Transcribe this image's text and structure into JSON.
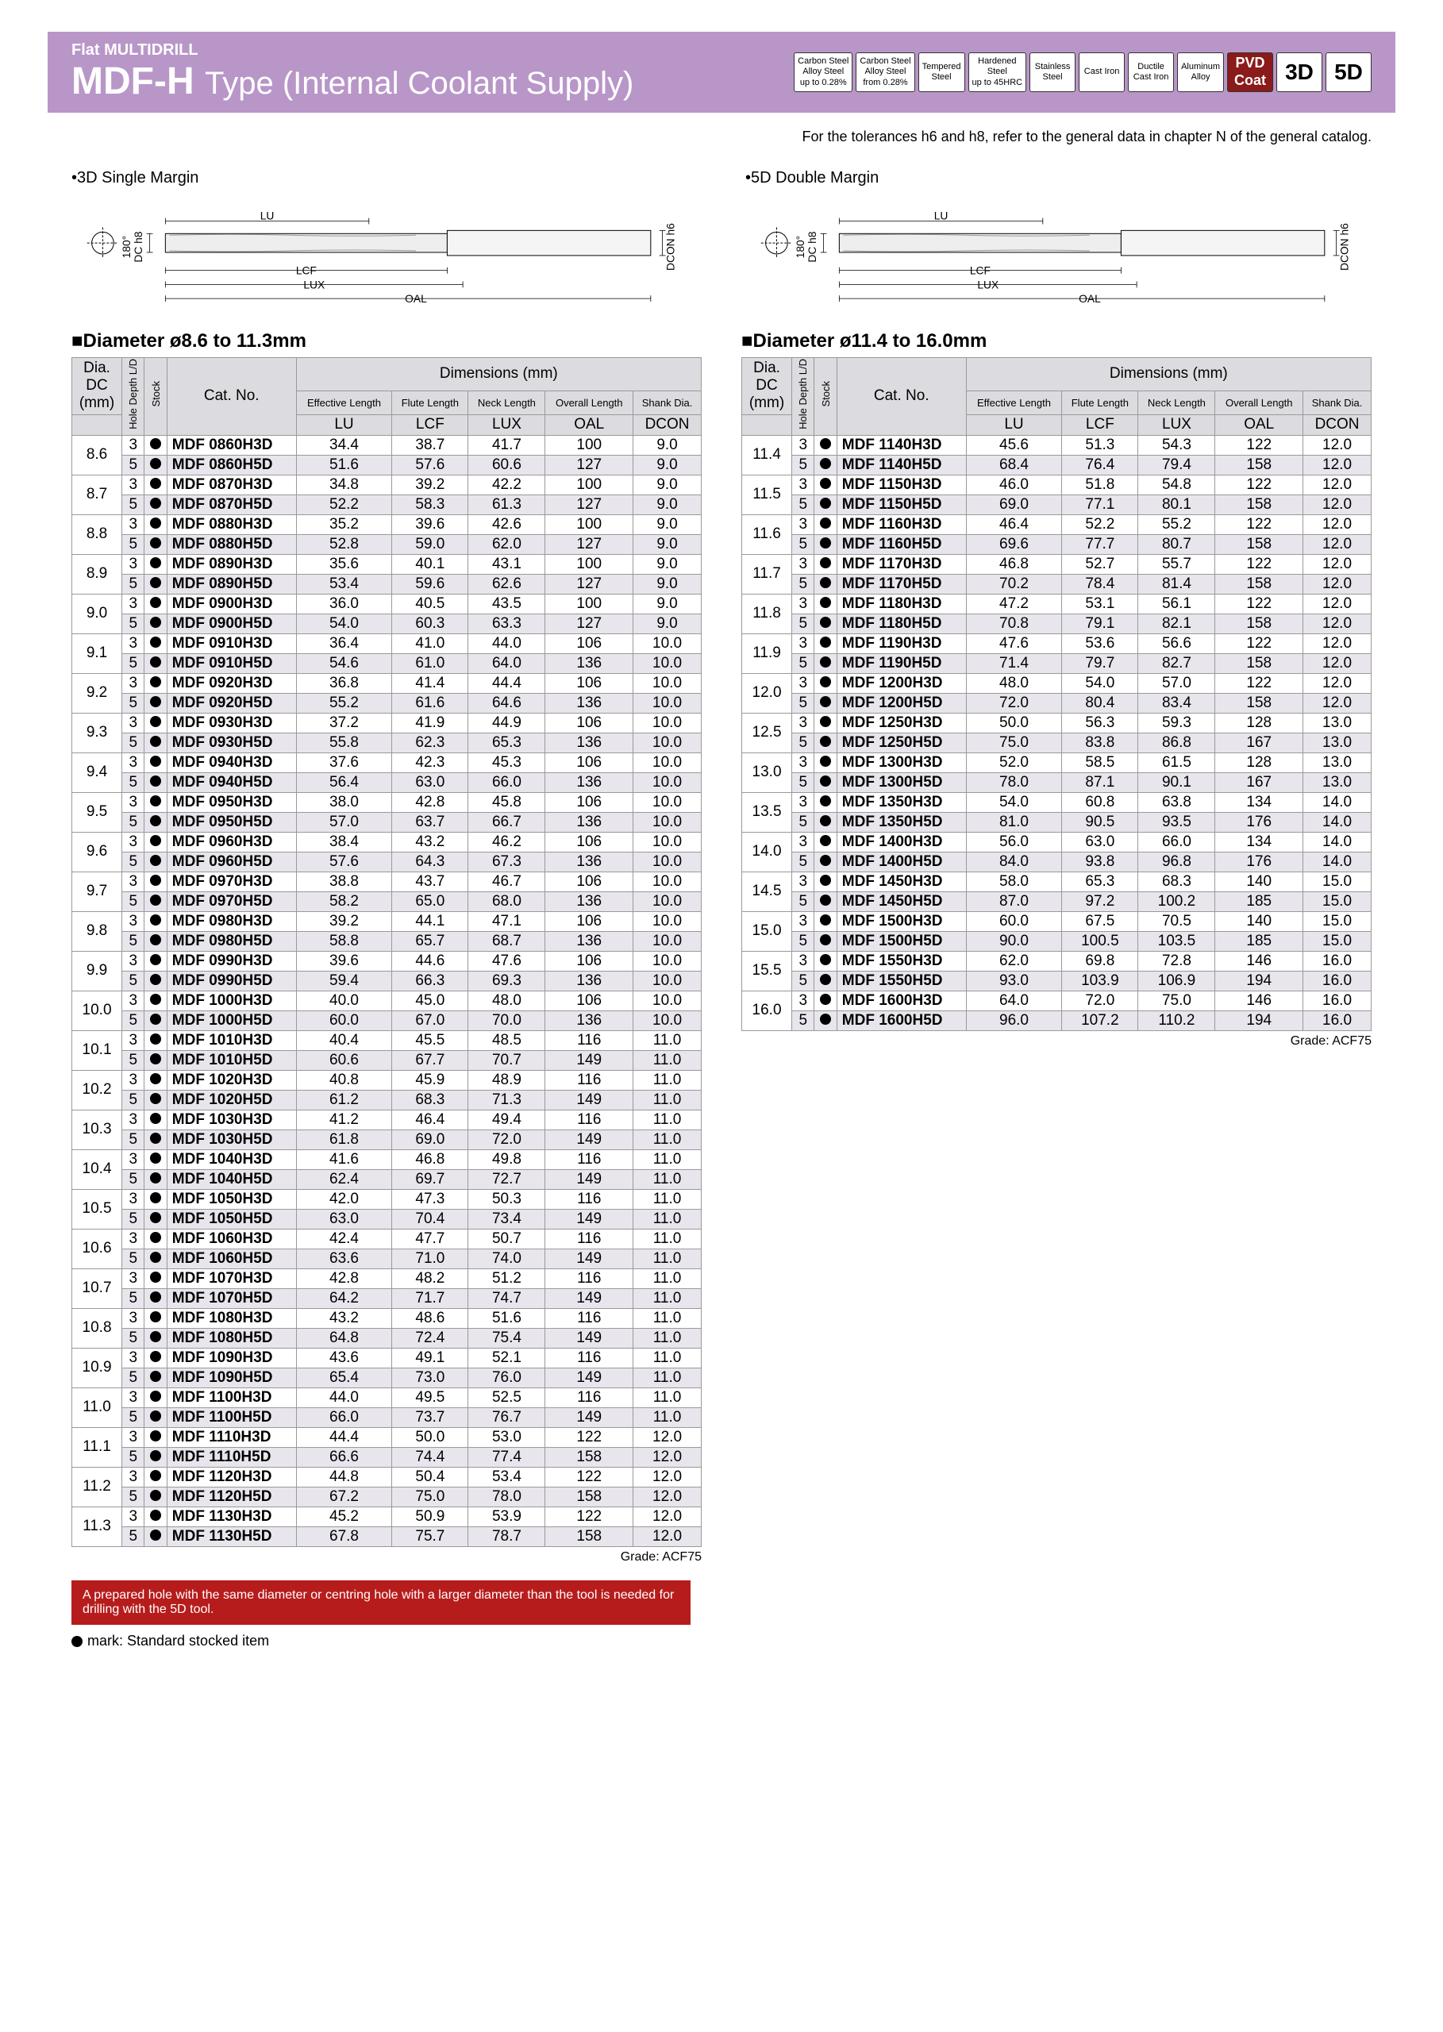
{
  "header": {
    "subtitle": "Flat MULTIDRILL",
    "title1": "MDF-H",
    "title2": "Type",
    "title3": "(Internal Coolant Supply)",
    "badges": [
      {
        "l1": "Carbon Steel",
        "l2": "Alloy Steel",
        "l3": "up to 0.28%"
      },
      {
        "l1": "Carbon Steel",
        "l2": "Alloy Steel",
        "l3": "from 0.28%"
      },
      {
        "l1": "Tempered",
        "l2": "Steel",
        "l3": ""
      },
      {
        "l1": "Hardened",
        "l2": "Steel",
        "l3": "up to 45HRC"
      },
      {
        "l1": "Stainless",
        "l2": "Steel",
        "l3": ""
      },
      {
        "l1": "Cast Iron",
        "l2": "",
        "l3": ""
      },
      {
        "l1": "Ductile",
        "l2": "Cast Iron",
        "l3": ""
      },
      {
        "l1": "Aluminum",
        "l2": "Alloy",
        "l3": ""
      },
      {
        "l1": "PVD",
        "l2": "Coat",
        "l3": "",
        "cls": "pvd"
      },
      {
        "l1": "3D",
        "cls": "big"
      },
      {
        "l1": "5D",
        "cls": "big"
      }
    ]
  },
  "tolerance_note": "For the tolerances h6 and h8, refer to the general data in chapter N of the general catalog.",
  "diagrams": {
    "d3": "•3D Single Margin",
    "d5": "•5D Double Margin",
    "labels": {
      "lu": "LU",
      "lcf": "LCF",
      "lux": "LUX",
      "oal": "OAL",
      "dc": "DC h8",
      "dcon": "DCON h6",
      "ang": "180°"
    }
  },
  "table_headers": {
    "dia": "Dia.",
    "dc": "DC",
    "mm": "(mm)",
    "hdld": "Hole Depth L/D",
    "stock": "Stock",
    "catno": "Cat. No.",
    "dim": "Dimensions (mm)",
    "effl": "Effective Length",
    "fl": "Flute Length",
    "nl": "Neck Length",
    "ol": "Overall Length",
    "sd": "Shank Dia.",
    "lu": "LU",
    "lcf": "LCF",
    "lux": "LUX",
    "oal": "OAL",
    "dcon": "DCON"
  },
  "left": {
    "title": "■Diameter ø8.6 to 11.3mm",
    "grade": "Grade: ACF75",
    "rows": [
      {
        "dia": "8.6",
        "d": "3",
        "cn": "MDF 0860H3D",
        "lu": "34.4",
        "lcf": "38.7",
        "lux": "41.7",
        "oal": "100",
        "dcon": "9.0"
      },
      {
        "dia": "",
        "d": "5",
        "cn": "MDF 0860H5D",
        "lu": "51.6",
        "lcf": "57.6",
        "lux": "60.6",
        "oal": "127",
        "dcon": "9.0",
        "s": 1
      },
      {
        "dia": "8.7",
        "d": "3",
        "cn": "MDF 0870H3D",
        "lu": "34.8",
        "lcf": "39.2",
        "lux": "42.2",
        "oal": "100",
        "dcon": "9.0"
      },
      {
        "dia": "",
        "d": "5",
        "cn": "MDF 0870H5D",
        "lu": "52.2",
        "lcf": "58.3",
        "lux": "61.3",
        "oal": "127",
        "dcon": "9.0",
        "s": 1
      },
      {
        "dia": "8.8",
        "d": "3",
        "cn": "MDF 0880H3D",
        "lu": "35.2",
        "lcf": "39.6",
        "lux": "42.6",
        "oal": "100",
        "dcon": "9.0"
      },
      {
        "dia": "",
        "d": "5",
        "cn": "MDF 0880H5D",
        "lu": "52.8",
        "lcf": "59.0",
        "lux": "62.0",
        "oal": "127",
        "dcon": "9.0",
        "s": 1
      },
      {
        "dia": "8.9",
        "d": "3",
        "cn": "MDF 0890H3D",
        "lu": "35.6",
        "lcf": "40.1",
        "lux": "43.1",
        "oal": "100",
        "dcon": "9.0"
      },
      {
        "dia": "",
        "d": "5",
        "cn": "MDF 0890H5D",
        "lu": "53.4",
        "lcf": "59.6",
        "lux": "62.6",
        "oal": "127",
        "dcon": "9.0",
        "s": 1
      },
      {
        "dia": "9.0",
        "d": "3",
        "cn": "MDF 0900H3D",
        "lu": "36.0",
        "lcf": "40.5",
        "lux": "43.5",
        "oal": "100",
        "dcon": "9.0"
      },
      {
        "dia": "",
        "d": "5",
        "cn": "MDF 0900H5D",
        "lu": "54.0",
        "lcf": "60.3",
        "lux": "63.3",
        "oal": "127",
        "dcon": "9.0",
        "s": 1
      },
      {
        "dia": "9.1",
        "d": "3",
        "cn": "MDF 0910H3D",
        "lu": "36.4",
        "lcf": "41.0",
        "lux": "44.0",
        "oal": "106",
        "dcon": "10.0"
      },
      {
        "dia": "",
        "d": "5",
        "cn": "MDF 0910H5D",
        "lu": "54.6",
        "lcf": "61.0",
        "lux": "64.0",
        "oal": "136",
        "dcon": "10.0",
        "s": 1
      },
      {
        "dia": "9.2",
        "d": "3",
        "cn": "MDF 0920H3D",
        "lu": "36.8",
        "lcf": "41.4",
        "lux": "44.4",
        "oal": "106",
        "dcon": "10.0"
      },
      {
        "dia": "",
        "d": "5",
        "cn": "MDF 0920H5D",
        "lu": "55.2",
        "lcf": "61.6",
        "lux": "64.6",
        "oal": "136",
        "dcon": "10.0",
        "s": 1
      },
      {
        "dia": "9.3",
        "d": "3",
        "cn": "MDF 0930H3D",
        "lu": "37.2",
        "lcf": "41.9",
        "lux": "44.9",
        "oal": "106",
        "dcon": "10.0"
      },
      {
        "dia": "",
        "d": "5",
        "cn": "MDF 0930H5D",
        "lu": "55.8",
        "lcf": "62.3",
        "lux": "65.3",
        "oal": "136",
        "dcon": "10.0",
        "s": 1
      },
      {
        "dia": "9.4",
        "d": "3",
        "cn": "MDF 0940H3D",
        "lu": "37.6",
        "lcf": "42.3",
        "lux": "45.3",
        "oal": "106",
        "dcon": "10.0"
      },
      {
        "dia": "",
        "d": "5",
        "cn": "MDF 0940H5D",
        "lu": "56.4",
        "lcf": "63.0",
        "lux": "66.0",
        "oal": "136",
        "dcon": "10.0",
        "s": 1
      },
      {
        "dia": "9.5",
        "d": "3",
        "cn": "MDF 0950H3D",
        "lu": "38.0",
        "lcf": "42.8",
        "lux": "45.8",
        "oal": "106",
        "dcon": "10.0"
      },
      {
        "dia": "",
        "d": "5",
        "cn": "MDF 0950H5D",
        "lu": "57.0",
        "lcf": "63.7",
        "lux": "66.7",
        "oal": "136",
        "dcon": "10.0",
        "s": 1
      },
      {
        "dia": "9.6",
        "d": "3",
        "cn": "MDF 0960H3D",
        "lu": "38.4",
        "lcf": "43.2",
        "lux": "46.2",
        "oal": "106",
        "dcon": "10.0"
      },
      {
        "dia": "",
        "d": "5",
        "cn": "MDF 0960H5D",
        "lu": "57.6",
        "lcf": "64.3",
        "lux": "67.3",
        "oal": "136",
        "dcon": "10.0",
        "s": 1
      },
      {
        "dia": "9.7",
        "d": "3",
        "cn": "MDF 0970H3D",
        "lu": "38.8",
        "lcf": "43.7",
        "lux": "46.7",
        "oal": "106",
        "dcon": "10.0"
      },
      {
        "dia": "",
        "d": "5",
        "cn": "MDF 0970H5D",
        "lu": "58.2",
        "lcf": "65.0",
        "lux": "68.0",
        "oal": "136",
        "dcon": "10.0",
        "s": 1
      },
      {
        "dia": "9.8",
        "d": "3",
        "cn": "MDF 0980H3D",
        "lu": "39.2",
        "lcf": "44.1",
        "lux": "47.1",
        "oal": "106",
        "dcon": "10.0"
      },
      {
        "dia": "",
        "d": "5",
        "cn": "MDF 0980H5D",
        "lu": "58.8",
        "lcf": "65.7",
        "lux": "68.7",
        "oal": "136",
        "dcon": "10.0",
        "s": 1
      },
      {
        "dia": "9.9",
        "d": "3",
        "cn": "MDF 0990H3D",
        "lu": "39.6",
        "lcf": "44.6",
        "lux": "47.6",
        "oal": "106",
        "dcon": "10.0"
      },
      {
        "dia": "",
        "d": "5",
        "cn": "MDF 0990H5D",
        "lu": "59.4",
        "lcf": "66.3",
        "lux": "69.3",
        "oal": "136",
        "dcon": "10.0",
        "s": 1
      },
      {
        "dia": "10.0",
        "d": "3",
        "cn": "MDF 1000H3D",
        "lu": "40.0",
        "lcf": "45.0",
        "lux": "48.0",
        "oal": "106",
        "dcon": "10.0"
      },
      {
        "dia": "",
        "d": "5",
        "cn": "MDF 1000H5D",
        "lu": "60.0",
        "lcf": "67.0",
        "lux": "70.0",
        "oal": "136",
        "dcon": "10.0",
        "s": 1
      },
      {
        "dia": "10.1",
        "d": "3",
        "cn": "MDF 1010H3D",
        "lu": "40.4",
        "lcf": "45.5",
        "lux": "48.5",
        "oal": "116",
        "dcon": "11.0"
      },
      {
        "dia": "",
        "d": "5",
        "cn": "MDF 1010H5D",
        "lu": "60.6",
        "lcf": "67.7",
        "lux": "70.7",
        "oal": "149",
        "dcon": "11.0",
        "s": 1
      },
      {
        "dia": "10.2",
        "d": "3",
        "cn": "MDF 1020H3D",
        "lu": "40.8",
        "lcf": "45.9",
        "lux": "48.9",
        "oal": "116",
        "dcon": "11.0"
      },
      {
        "dia": "",
        "d": "5",
        "cn": "MDF 1020H5D",
        "lu": "61.2",
        "lcf": "68.3",
        "lux": "71.3",
        "oal": "149",
        "dcon": "11.0",
        "s": 1
      },
      {
        "dia": "10.3",
        "d": "3",
        "cn": "MDF 1030H3D",
        "lu": "41.2",
        "lcf": "46.4",
        "lux": "49.4",
        "oal": "116",
        "dcon": "11.0"
      },
      {
        "dia": "",
        "d": "5",
        "cn": "MDF 1030H5D",
        "lu": "61.8",
        "lcf": "69.0",
        "lux": "72.0",
        "oal": "149",
        "dcon": "11.0",
        "s": 1
      },
      {
        "dia": "10.4",
        "d": "3",
        "cn": "MDF 1040H3D",
        "lu": "41.6",
        "lcf": "46.8",
        "lux": "49.8",
        "oal": "116",
        "dcon": "11.0"
      },
      {
        "dia": "",
        "d": "5",
        "cn": "MDF 1040H5D",
        "lu": "62.4",
        "lcf": "69.7",
        "lux": "72.7",
        "oal": "149",
        "dcon": "11.0",
        "s": 1
      },
      {
        "dia": "10.5",
        "d": "3",
        "cn": "MDF 1050H3D",
        "lu": "42.0",
        "lcf": "47.3",
        "lux": "50.3",
        "oal": "116",
        "dcon": "11.0"
      },
      {
        "dia": "",
        "d": "5",
        "cn": "MDF 1050H5D",
        "lu": "63.0",
        "lcf": "70.4",
        "lux": "73.4",
        "oal": "149",
        "dcon": "11.0",
        "s": 1
      },
      {
        "dia": "10.6",
        "d": "3",
        "cn": "MDF 1060H3D",
        "lu": "42.4",
        "lcf": "47.7",
        "lux": "50.7",
        "oal": "116",
        "dcon": "11.0"
      },
      {
        "dia": "",
        "d": "5",
        "cn": "MDF 1060H5D",
        "lu": "63.6",
        "lcf": "71.0",
        "lux": "74.0",
        "oal": "149",
        "dcon": "11.0",
        "s": 1
      },
      {
        "dia": "10.7",
        "d": "3",
        "cn": "MDF 1070H3D",
        "lu": "42.8",
        "lcf": "48.2",
        "lux": "51.2",
        "oal": "116",
        "dcon": "11.0"
      },
      {
        "dia": "",
        "d": "5",
        "cn": "MDF 1070H5D",
        "lu": "64.2",
        "lcf": "71.7",
        "lux": "74.7",
        "oal": "149",
        "dcon": "11.0",
        "s": 1
      },
      {
        "dia": "10.8",
        "d": "3",
        "cn": "MDF 1080H3D",
        "lu": "43.2",
        "lcf": "48.6",
        "lux": "51.6",
        "oal": "116",
        "dcon": "11.0"
      },
      {
        "dia": "",
        "d": "5",
        "cn": "MDF 1080H5D",
        "lu": "64.8",
        "lcf": "72.4",
        "lux": "75.4",
        "oal": "149",
        "dcon": "11.0",
        "s": 1
      },
      {
        "dia": "10.9",
        "d": "3",
        "cn": "MDF 1090H3D",
        "lu": "43.6",
        "lcf": "49.1",
        "lux": "52.1",
        "oal": "116",
        "dcon": "11.0"
      },
      {
        "dia": "",
        "d": "5",
        "cn": "MDF 1090H5D",
        "lu": "65.4",
        "lcf": "73.0",
        "lux": "76.0",
        "oal": "149",
        "dcon": "11.0",
        "s": 1
      },
      {
        "dia": "11.0",
        "d": "3",
        "cn": "MDF 1100H3D",
        "lu": "44.0",
        "lcf": "49.5",
        "lux": "52.5",
        "oal": "116",
        "dcon": "11.0"
      },
      {
        "dia": "",
        "d": "5",
        "cn": "MDF 1100H5D",
        "lu": "66.0",
        "lcf": "73.7",
        "lux": "76.7",
        "oal": "149",
        "dcon": "11.0",
        "s": 1
      },
      {
        "dia": "11.1",
        "d": "3",
        "cn": "MDF 1110H3D",
        "lu": "44.4",
        "lcf": "50.0",
        "lux": "53.0",
        "oal": "122",
        "dcon": "12.0"
      },
      {
        "dia": "",
        "d": "5",
        "cn": "MDF 1110H5D",
        "lu": "66.6",
        "lcf": "74.4",
        "lux": "77.4",
        "oal": "158",
        "dcon": "12.0",
        "s": 1
      },
      {
        "dia": "11.2",
        "d": "3",
        "cn": "MDF 1120H3D",
        "lu": "44.8",
        "lcf": "50.4",
        "lux": "53.4",
        "oal": "122",
        "dcon": "12.0"
      },
      {
        "dia": "",
        "d": "5",
        "cn": "MDF 1120H5D",
        "lu": "67.2",
        "lcf": "75.0",
        "lux": "78.0",
        "oal": "158",
        "dcon": "12.0",
        "s": 1
      },
      {
        "dia": "11.3",
        "d": "3",
        "cn": "MDF 1130H3D",
        "lu": "45.2",
        "lcf": "50.9",
        "lux": "53.9",
        "oal": "122",
        "dcon": "12.0"
      },
      {
        "dia": "",
        "d": "5",
        "cn": "MDF 1130H5D",
        "lu": "67.8",
        "lcf": "75.7",
        "lux": "78.7",
        "oal": "158",
        "dcon": "12.0",
        "s": 1
      }
    ]
  },
  "right": {
    "title": "■Diameter ø11.4 to 16.0mm",
    "grade": "Grade: ACF75",
    "rows": [
      {
        "dia": "11.4",
        "d": "3",
        "cn": "MDF 1140H3D",
        "lu": "45.6",
        "lcf": "51.3",
        "lux": "54.3",
        "oal": "122",
        "dcon": "12.0"
      },
      {
        "dia": "",
        "d": "5",
        "cn": "MDF 1140H5D",
        "lu": "68.4",
        "lcf": "76.4",
        "lux": "79.4",
        "oal": "158",
        "dcon": "12.0",
        "s": 1
      },
      {
        "dia": "11.5",
        "d": "3",
        "cn": "MDF 1150H3D",
        "lu": "46.0",
        "lcf": "51.8",
        "lux": "54.8",
        "oal": "122",
        "dcon": "12.0"
      },
      {
        "dia": "",
        "d": "5",
        "cn": "MDF 1150H5D",
        "lu": "69.0",
        "lcf": "77.1",
        "lux": "80.1",
        "oal": "158",
        "dcon": "12.0",
        "s": 1
      },
      {
        "dia": "11.6",
        "d": "3",
        "cn": "MDF 1160H3D",
        "lu": "46.4",
        "lcf": "52.2",
        "lux": "55.2",
        "oal": "122",
        "dcon": "12.0"
      },
      {
        "dia": "",
        "d": "5",
        "cn": "MDF 1160H5D",
        "lu": "69.6",
        "lcf": "77.7",
        "lux": "80.7",
        "oal": "158",
        "dcon": "12.0",
        "s": 1
      },
      {
        "dia": "11.7",
        "d": "3",
        "cn": "MDF 1170H3D",
        "lu": "46.8",
        "lcf": "52.7",
        "lux": "55.7",
        "oal": "122",
        "dcon": "12.0"
      },
      {
        "dia": "",
        "d": "5",
        "cn": "MDF 1170H5D",
        "lu": "70.2",
        "lcf": "78.4",
        "lux": "81.4",
        "oal": "158",
        "dcon": "12.0",
        "s": 1
      },
      {
        "dia": "11.8",
        "d": "3",
        "cn": "MDF 1180H3D",
        "lu": "47.2",
        "lcf": "53.1",
        "lux": "56.1",
        "oal": "122",
        "dcon": "12.0"
      },
      {
        "dia": "",
        "d": "5",
        "cn": "MDF 1180H5D",
        "lu": "70.8",
        "lcf": "79.1",
        "lux": "82.1",
        "oal": "158",
        "dcon": "12.0",
        "s": 1
      },
      {
        "dia": "11.9",
        "d": "3",
        "cn": "MDF 1190H3D",
        "lu": "47.6",
        "lcf": "53.6",
        "lux": "56.6",
        "oal": "122",
        "dcon": "12.0"
      },
      {
        "dia": "",
        "d": "5",
        "cn": "MDF 1190H5D",
        "lu": "71.4",
        "lcf": "79.7",
        "lux": "82.7",
        "oal": "158",
        "dcon": "12.0",
        "s": 1
      },
      {
        "dia": "12.0",
        "d": "3",
        "cn": "MDF 1200H3D",
        "lu": "48.0",
        "lcf": "54.0",
        "lux": "57.0",
        "oal": "122",
        "dcon": "12.0"
      },
      {
        "dia": "",
        "d": "5",
        "cn": "MDF 1200H5D",
        "lu": "72.0",
        "lcf": "80.4",
        "lux": "83.4",
        "oal": "158",
        "dcon": "12.0",
        "s": 1
      },
      {
        "dia": "12.5",
        "d": "3",
        "cn": "MDF 1250H3D",
        "lu": "50.0",
        "lcf": "56.3",
        "lux": "59.3",
        "oal": "128",
        "dcon": "13.0"
      },
      {
        "dia": "",
        "d": "5",
        "cn": "MDF 1250H5D",
        "lu": "75.0",
        "lcf": "83.8",
        "lux": "86.8",
        "oal": "167",
        "dcon": "13.0",
        "s": 1
      },
      {
        "dia": "13.0",
        "d": "3",
        "cn": "MDF 1300H3D",
        "lu": "52.0",
        "lcf": "58.5",
        "lux": "61.5",
        "oal": "128",
        "dcon": "13.0"
      },
      {
        "dia": "",
        "d": "5",
        "cn": "MDF 1300H5D",
        "lu": "78.0",
        "lcf": "87.1",
        "lux": "90.1",
        "oal": "167",
        "dcon": "13.0",
        "s": 1
      },
      {
        "dia": "13.5",
        "d": "3",
        "cn": "MDF 1350H3D",
        "lu": "54.0",
        "lcf": "60.8",
        "lux": "63.8",
        "oal": "134",
        "dcon": "14.0"
      },
      {
        "dia": "",
        "d": "5",
        "cn": "MDF 1350H5D",
        "lu": "81.0",
        "lcf": "90.5",
        "lux": "93.5",
        "oal": "176",
        "dcon": "14.0",
        "s": 1
      },
      {
        "dia": "14.0",
        "d": "3",
        "cn": "MDF 1400H3D",
        "lu": "56.0",
        "lcf": "63.0",
        "lux": "66.0",
        "oal": "134",
        "dcon": "14.0"
      },
      {
        "dia": "",
        "d": "5",
        "cn": "MDF 1400H5D",
        "lu": "84.0",
        "lcf": "93.8",
        "lux": "96.8",
        "oal": "176",
        "dcon": "14.0",
        "s": 1
      },
      {
        "dia": "14.5",
        "d": "3",
        "cn": "MDF 1450H3D",
        "lu": "58.0",
        "lcf": "65.3",
        "lux": "68.3",
        "oal": "140",
        "dcon": "15.0"
      },
      {
        "dia": "",
        "d": "5",
        "cn": "MDF 1450H5D",
        "lu": "87.0",
        "lcf": "97.2",
        "lux": "100.2",
        "oal": "185",
        "dcon": "15.0",
        "s": 1
      },
      {
        "dia": "15.0",
        "d": "3",
        "cn": "MDF 1500H3D",
        "lu": "60.0",
        "lcf": "67.5",
        "lux": "70.5",
        "oal": "140",
        "dcon": "15.0"
      },
      {
        "dia": "",
        "d": "5",
        "cn": "MDF 1500H5D",
        "lu": "90.0",
        "lcf": "100.5",
        "lux": "103.5",
        "oal": "185",
        "dcon": "15.0",
        "s": 1
      },
      {
        "dia": "15.5",
        "d": "3",
        "cn": "MDF 1550H3D",
        "lu": "62.0",
        "lcf": "69.8",
        "lux": "72.8",
        "oal": "146",
        "dcon": "16.0"
      },
      {
        "dia": "",
        "d": "5",
        "cn": "MDF 1550H5D",
        "lu": "93.0",
        "lcf": "103.9",
        "lux": "106.9",
        "oal": "194",
        "dcon": "16.0",
        "s": 1
      },
      {
        "dia": "16.0",
        "d": "3",
        "cn": "MDF 1600H3D",
        "lu": "64.0",
        "lcf": "72.0",
        "lux": "75.0",
        "oal": "146",
        "dcon": "16.0"
      },
      {
        "dia": "",
        "d": "5",
        "cn": "MDF 1600H5D",
        "lu": "96.0",
        "lcf": "107.2",
        "lux": "110.2",
        "oal": "194",
        "dcon": "16.0",
        "s": 1
      }
    ]
  },
  "warning": "A prepared hole with the same diameter or centring hole with a larger diameter than the tool is needed for drilling with the 5D tool.",
  "footnote": "mark: Standard stocked item"
}
